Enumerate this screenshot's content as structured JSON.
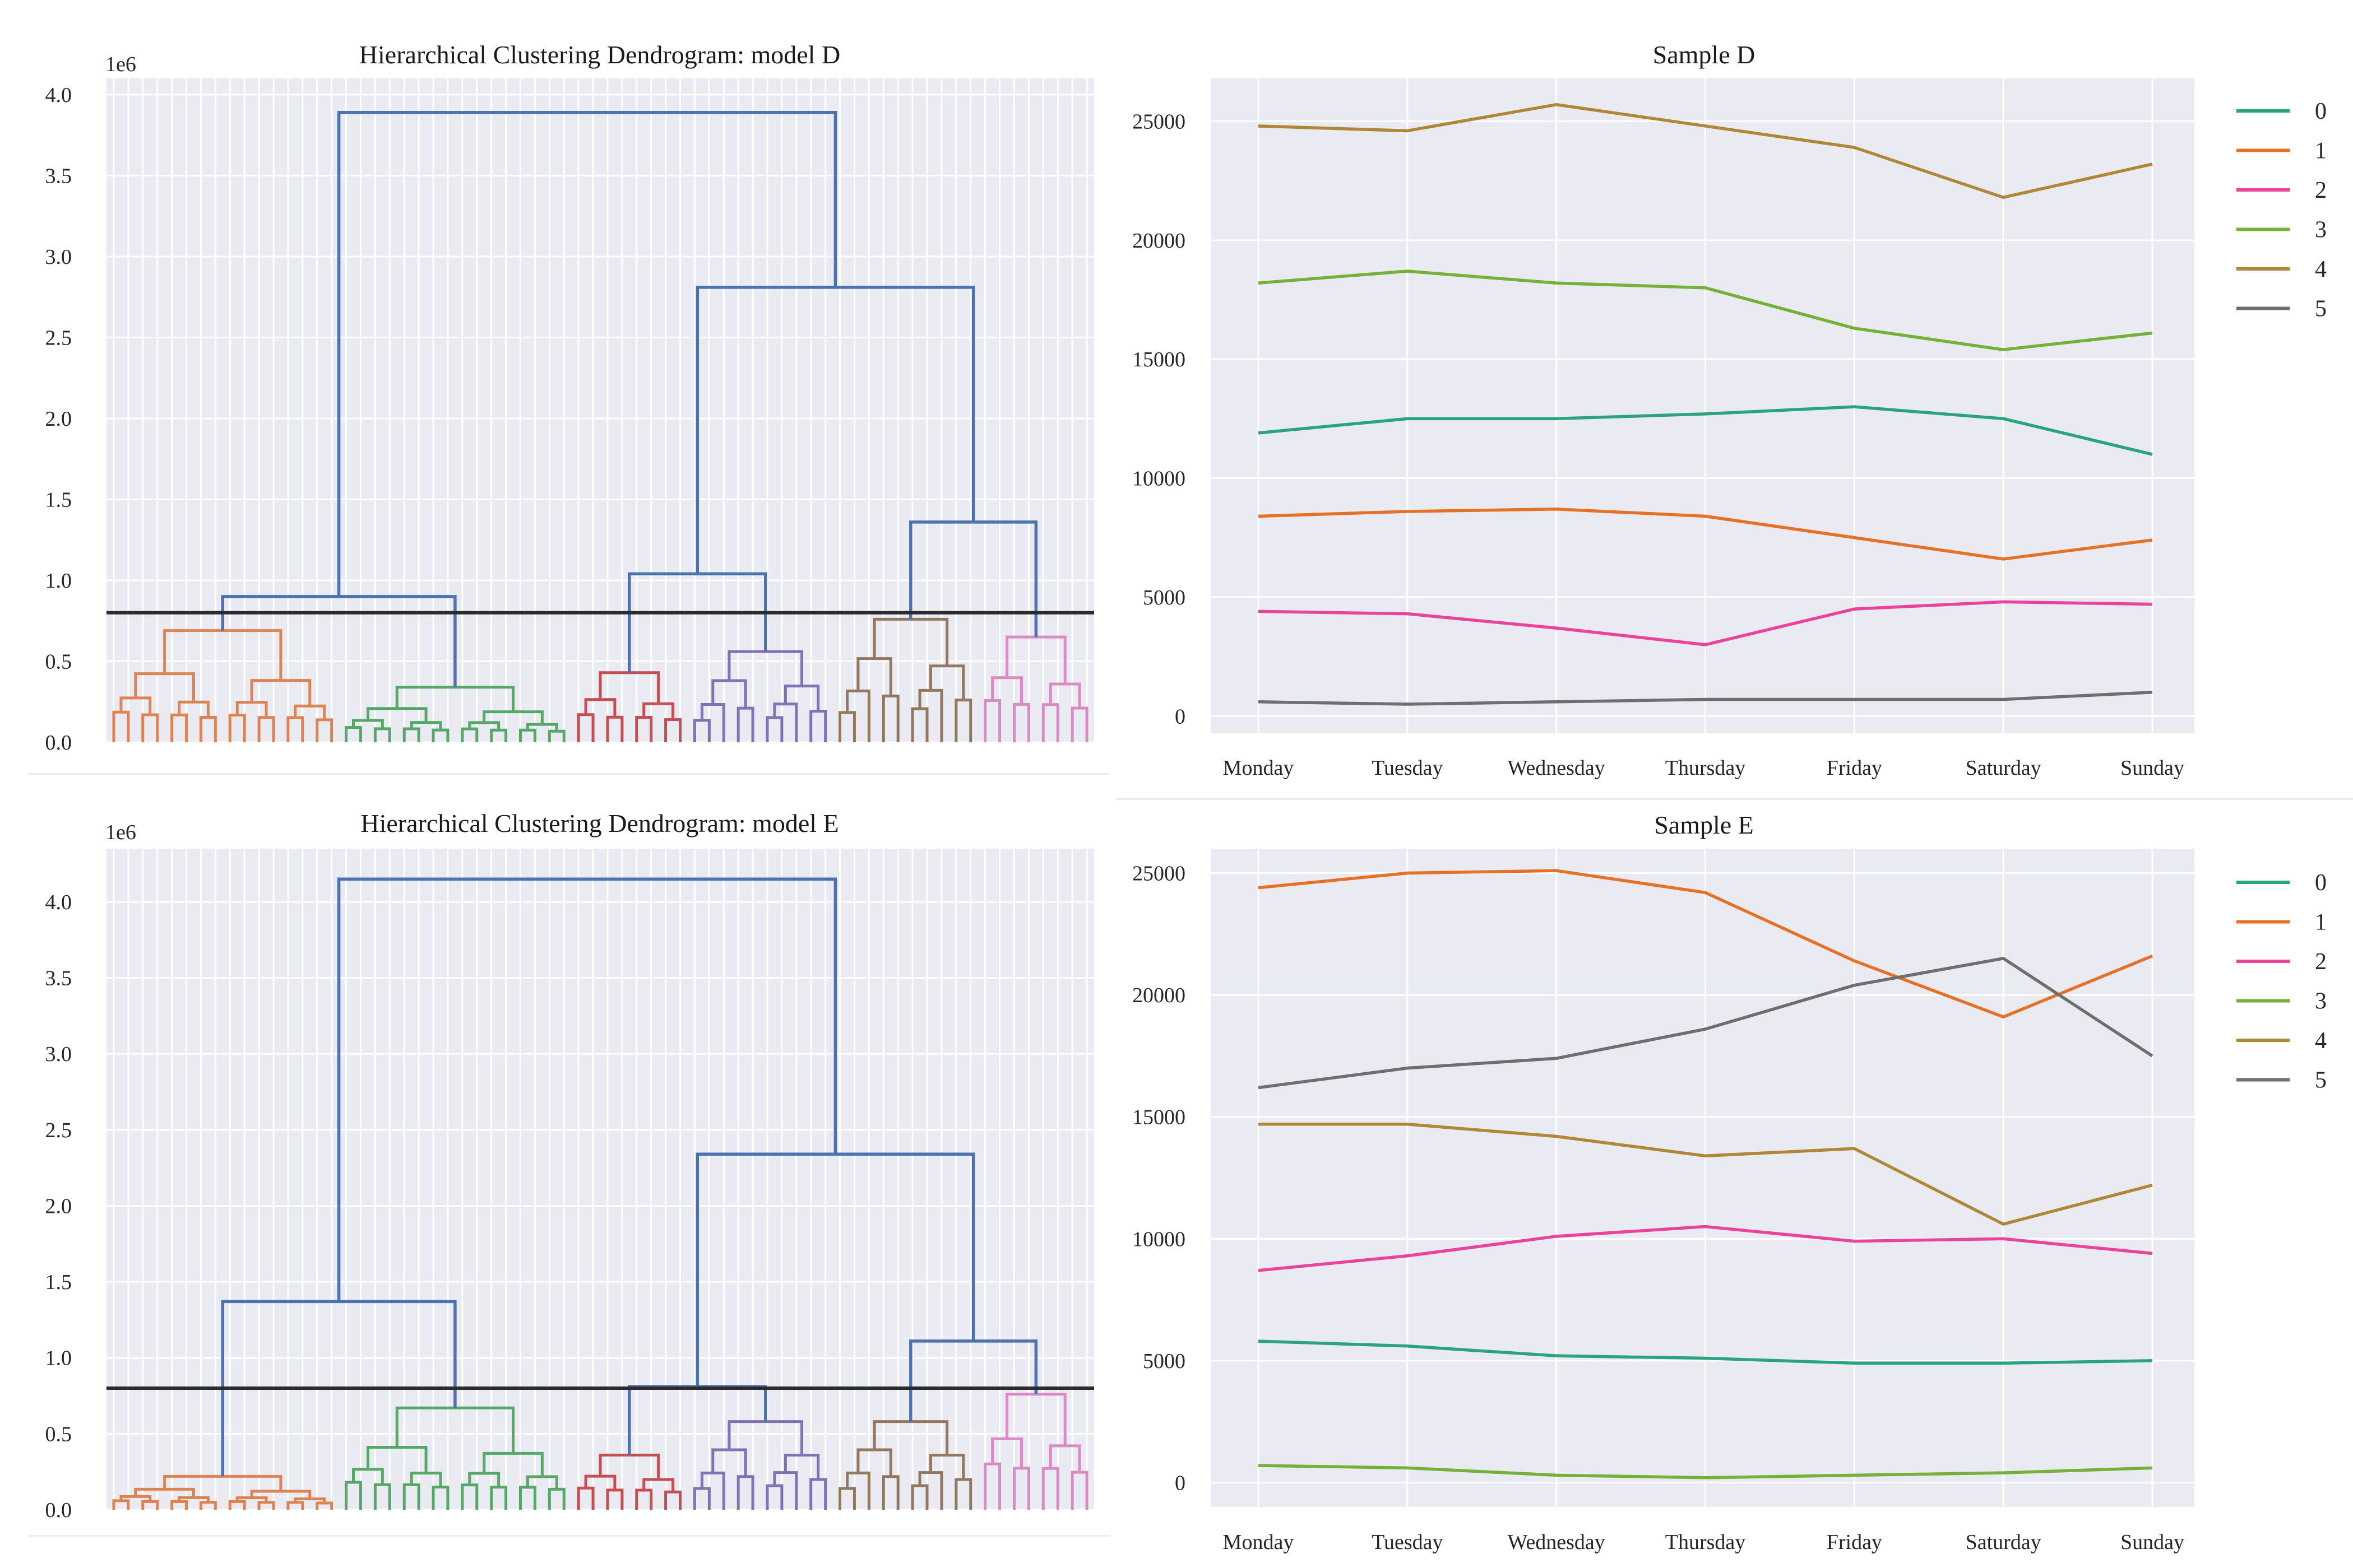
{
  "chart_data": [
    {
      "type": "dendrogram",
      "title": "Hierarchical Clustering Dendrogram: model D",
      "y_offset_label": "1e6",
      "yticks": [
        "0.0",
        "0.5",
        "1.0",
        "1.5",
        "2.0",
        "2.5",
        "3.0",
        "3.5",
        "4.0"
      ],
      "ylim": [
        0,
        4.1
      ],
      "cut_height": 0.8,
      "cluster_colors": [
        "#dd8452",
        "#55a868",
        "#c44e52",
        "#8172b3",
        "#937860",
        "#da8bc3"
      ],
      "link_color": "#4c72b0",
      "clusters": [
        {
          "leaves": 16,
          "height": 0.69
        },
        {
          "leaves": 16,
          "height": 0.34
        },
        {
          "leaves": 8,
          "height": 0.43
        },
        {
          "leaves": 10,
          "height": 0.56
        },
        {
          "leaves": 10,
          "height": 0.76
        },
        {
          "leaves": 8,
          "height": 0.65
        }
      ],
      "merges": [
        {
          "a": 0,
          "b": 1,
          "height": 0.9
        },
        {
          "a": 2,
          "b": 3,
          "height": 1.04
        },
        {
          "a": 4,
          "b": 5,
          "height": 1.36
        },
        {
          "a": "m1",
          "b": "m2",
          "height": 2.81
        },
        {
          "a": "m0",
          "b": "m3",
          "height": 3.89
        }
      ]
    },
    {
      "type": "line",
      "title": "Sample D",
      "categories": [
        "Monday",
        "Tuesday",
        "Wednesday",
        "Thursday",
        "Friday",
        "Saturday",
        "Sunday"
      ],
      "yticks": [
        "0",
        "5000",
        "10000",
        "15000",
        "20000",
        "25000"
      ],
      "ylim": [
        -700,
        26800
      ],
      "series": [
        {
          "name": "0",
          "color": "#2aa37f",
          "values": [
            11900,
            12500,
            12500,
            12700,
            13000,
            12500,
            11000
          ]
        },
        {
          "name": "1",
          "color": "#e57126",
          "values": [
            8400,
            8600,
            8700,
            8400,
            7500,
            6600,
            7400
          ]
        },
        {
          "name": "2",
          "color": "#e7449a",
          "values": [
            4400,
            4300,
            3700,
            3000,
            4500,
            4800,
            4700
          ]
        },
        {
          "name": "3",
          "color": "#73b137",
          "values": [
            18200,
            18700,
            18200,
            18000,
            16300,
            15400,
            16100
          ]
        },
        {
          "name": "4",
          "color": "#ae8737",
          "values": [
            24800,
            24600,
            25700,
            24800,
            23900,
            21800,
            23200
          ]
        },
        {
          "name": "5",
          "color": "#6e6e6e",
          "values": [
            600,
            500,
            600,
            700,
            700,
            700,
            1000
          ]
        }
      ]
    },
    {
      "type": "dendrogram",
      "title": "Hierarchical Clustering Dendrogram: model E",
      "y_offset_label": "1e6",
      "yticks": [
        "0.0",
        "0.5",
        "1.0",
        "1.5",
        "2.0",
        "2.5",
        "3.0",
        "3.5",
        "4.0"
      ],
      "ylim": [
        0,
        4.35
      ],
      "cut_height": 0.8,
      "cluster_colors": [
        "#dd8452",
        "#55a868",
        "#c44e52",
        "#8172b3",
        "#937860",
        "#da8bc3"
      ],
      "link_color": "#4c72b0",
      "clusters": [
        {
          "leaves": 16,
          "height": 0.22
        },
        {
          "leaves": 16,
          "height": 0.67
        },
        {
          "leaves": 8,
          "height": 0.36
        },
        {
          "leaves": 10,
          "height": 0.58
        },
        {
          "leaves": 10,
          "height": 0.58
        },
        {
          "leaves": 8,
          "height": 0.76
        }
      ],
      "merges": [
        {
          "a": 0,
          "b": 1,
          "height": 1.37
        },
        {
          "a": 2,
          "b": 3,
          "height": 0.81
        },
        {
          "a": 4,
          "b": 5,
          "height": 1.11
        },
        {
          "a": "m1",
          "b": "m2",
          "height": 2.34
        },
        {
          "a": "m0",
          "b": "m3",
          "height": 4.15
        }
      ]
    },
    {
      "type": "line",
      "title": "Sample E",
      "categories": [
        "Monday",
        "Tuesday",
        "Wednesday",
        "Thursday",
        "Friday",
        "Saturday",
        "Sunday"
      ],
      "yticks": [
        "0",
        "5000",
        "10000",
        "15000",
        "20000",
        "25000"
      ],
      "ylim": [
        -1000,
        26000
      ],
      "series": [
        {
          "name": "0",
          "color": "#2aa37f",
          "values": [
            5800,
            5600,
            5200,
            5100,
            4900,
            4900,
            5000
          ]
        },
        {
          "name": "1",
          "color": "#e57126",
          "values": [
            24400,
            25000,
            25100,
            24200,
            21400,
            19100,
            21600
          ]
        },
        {
          "name": "2",
          "color": "#e7449a",
          "values": [
            8700,
            9300,
            10100,
            10500,
            9900,
            10000,
            9400
          ]
        },
        {
          "name": "3",
          "color": "#73b137",
          "values": [
            700,
            600,
            300,
            200,
            300,
            400,
            600
          ]
        },
        {
          "name": "4",
          "color": "#ae8737",
          "values": [
            14700,
            14700,
            14200,
            13400,
            13700,
            10600,
            12200
          ]
        },
        {
          "name": "5",
          "color": "#6e6e6e",
          "values": [
            16200,
            17000,
            17400,
            18600,
            20400,
            21500,
            17500
          ]
        }
      ]
    }
  ]
}
